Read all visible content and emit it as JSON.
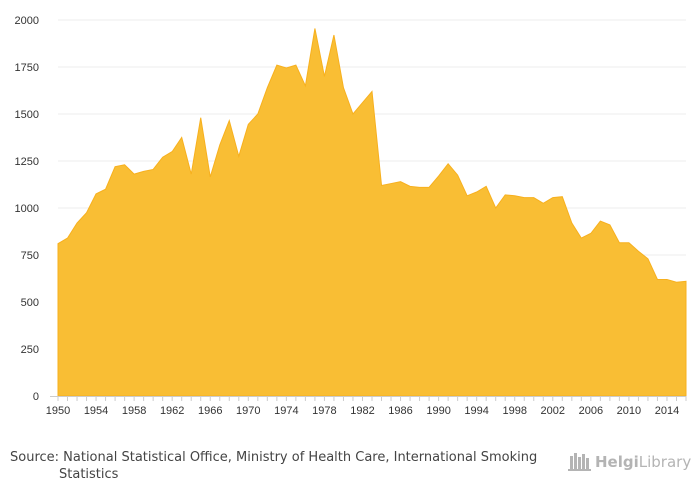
{
  "chart_data": {
    "type": "area",
    "title": "",
    "xlabel": "",
    "ylabel": "",
    "x": [
      1950,
      1951,
      1952,
      1953,
      1954,
      1955,
      1956,
      1957,
      1958,
      1959,
      1960,
      1961,
      1962,
      1963,
      1964,
      1965,
      1966,
      1967,
      1968,
      1969,
      1970,
      1971,
      1972,
      1973,
      1974,
      1975,
      1976,
      1977,
      1978,
      1979,
      1980,
      1981,
      1982,
      1983,
      1984,
      1985,
      1986,
      1987,
      1988,
      1989,
      1990,
      1991,
      1992,
      1993,
      1994,
      1995,
      1996,
      1997,
      1998,
      1999,
      2000,
      2001,
      2002,
      2003,
      2004,
      2005,
      2006,
      2007,
      2008,
      2009,
      2010,
      2011,
      2012,
      2013,
      2014,
      2015,
      2016
    ],
    "values": [
      810,
      840,
      920,
      975,
      1075,
      1100,
      1220,
      1230,
      1180,
      1195,
      1205,
      1270,
      1300,
      1375,
      1180,
      1480,
      1165,
      1335,
      1465,
      1275,
      1445,
      1500,
      1640,
      1760,
      1745,
      1760,
      1650,
      1955,
      1700,
      1920,
      1640,
      1500,
      1560,
      1620,
      1120,
      1130,
      1140,
      1115,
      1110,
      1110,
      1170,
      1235,
      1175,
      1065,
      1085,
      1115,
      1000,
      1070,
      1065,
      1055,
      1055,
      1025,
      1055,
      1060,
      920,
      840,
      865,
      930,
      910,
      815,
      815,
      770,
      730,
      620,
      620,
      605,
      610
    ],
    "xlim": [
      1950,
      2016
    ],
    "ylim": [
      0,
      2000
    ],
    "x_ticks": [
      "1950",
      "1954",
      "1958",
      "1962",
      "1966",
      "1970",
      "1974",
      "1978",
      "1982",
      "1986",
      "1990",
      "1994",
      "1998",
      "2002",
      "2006",
      "2010",
      "2014"
    ],
    "y_ticks": [
      "0",
      "250",
      "500",
      "750",
      "1000",
      "1250",
      "1500",
      "1750",
      "2000"
    ],
    "grid": "horizontal",
    "legend": "none"
  },
  "colors": {
    "area_fill": "#f9be34",
    "area_line": "#f7b01e",
    "axis": "#cccccc",
    "gridline": "#ededed"
  },
  "footer": {
    "source_line1": "Source: National Statistical Office, Ministry of Health Care, International Smoking",
    "source_line2": "Statistics",
    "logo_part1": "Helgi",
    "logo_part2": "Library"
  }
}
